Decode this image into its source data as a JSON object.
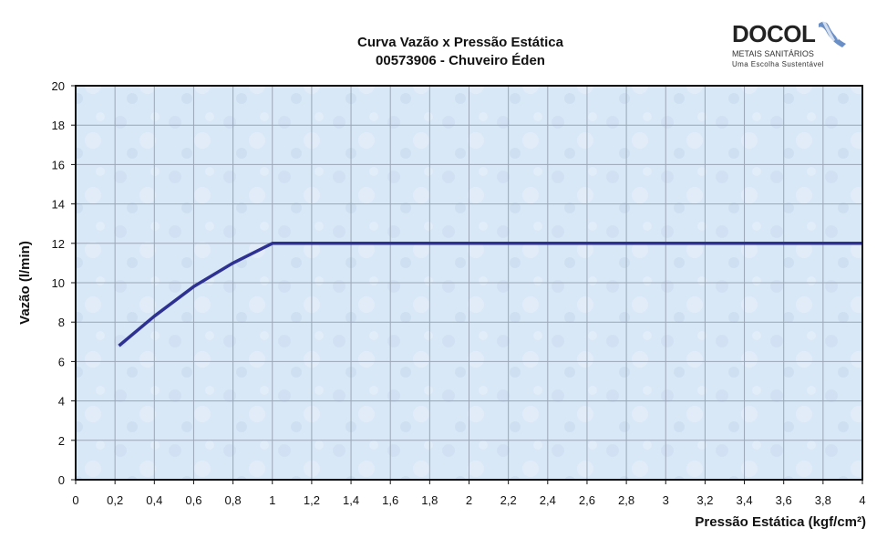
{
  "chart_data": {
    "type": "line",
    "title": "Curva Vazão x Pressão Estática",
    "subtitle": "00573906 - Chuveiro Éden",
    "xlabel": "Pressão Estática (kgf/cm²)",
    "ylabel": "Vazão (l/min)",
    "xlim": [
      0,
      4
    ],
    "ylim": [
      0,
      20
    ],
    "x_ticks": [
      "0",
      "0,2",
      "0,4",
      "0,6",
      "0,8",
      "1",
      "1,2",
      "1,4",
      "1,6",
      "1,8",
      "2",
      "2,2",
      "2,4",
      "2,6",
      "2,8",
      "3",
      "3,2",
      "3,4",
      "3,6",
      "3,8",
      "4"
    ],
    "y_ticks": [
      "0",
      "2",
      "4",
      "6",
      "8",
      "10",
      "12",
      "14",
      "16",
      "18",
      "20"
    ],
    "grid": true,
    "series": [
      {
        "x": [
          0.22,
          0.4,
          0.6,
          0.8,
          1.0,
          4.0
        ],
        "y": [
          6.8,
          8.3,
          9.8,
          11.0,
          12.0,
          12.0
        ],
        "color": "#2e3192"
      }
    ]
  },
  "logo": {
    "word": "DOCOL",
    "line1": "METAIS SANITÁRIOS",
    "line2": "Uma Escolha Sustentável",
    "mark_icon": "drop-stripes-icon",
    "mark_color": "#6a8fc7"
  },
  "colors": {
    "plot_background": "#d8e8f6",
    "grid": "#9aa6b6",
    "line": "#2e3192"
  }
}
